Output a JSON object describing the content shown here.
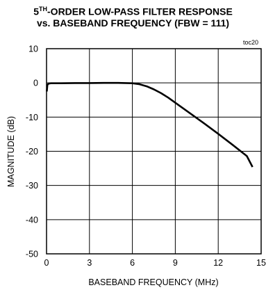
{
  "chart_data": {
    "type": "line",
    "title_prefix": "5",
    "title_sup": "TH",
    "title_line1_rest": "-ORDER LOW-PASS FILTER RESPONSE",
    "title_line2": "vs. BASEBAND FREQUENCY (FBW = 111)",
    "xlabel": "BASEBAND FREQUENCY (MHz)",
    "ylabel": "MAGNITUDE (dB)",
    "annotation": "toc20",
    "xlim": [
      0,
      15
    ],
    "ylim": [
      -50,
      10
    ],
    "xticks": [
      0,
      3,
      6,
      9,
      12,
      15
    ],
    "yticks": [
      10,
      0,
      -10,
      -20,
      -30,
      -40,
      -50
    ],
    "grid": true,
    "series": [
      {
        "x": [
          0.02,
          0.06,
          0.15,
          0.3,
          1,
          2,
          3,
          4,
          5,
          6,
          6.5,
          7,
          7.5,
          8,
          8.5,
          9,
          9.5,
          10,
          11,
          12,
          13,
          14,
          14.4
        ],
        "y": [
          -2.5,
          -0.6,
          -0.2,
          -0.1,
          -0.1,
          -0.05,
          -0.05,
          0,
          0,
          -0.1,
          -0.4,
          -1.0,
          -1.9,
          -3.0,
          -4.3,
          -5.8,
          -7.3,
          -8.8,
          -11.8,
          -14.9,
          -18.1,
          -21.4,
          -24.6
        ]
      }
    ]
  }
}
